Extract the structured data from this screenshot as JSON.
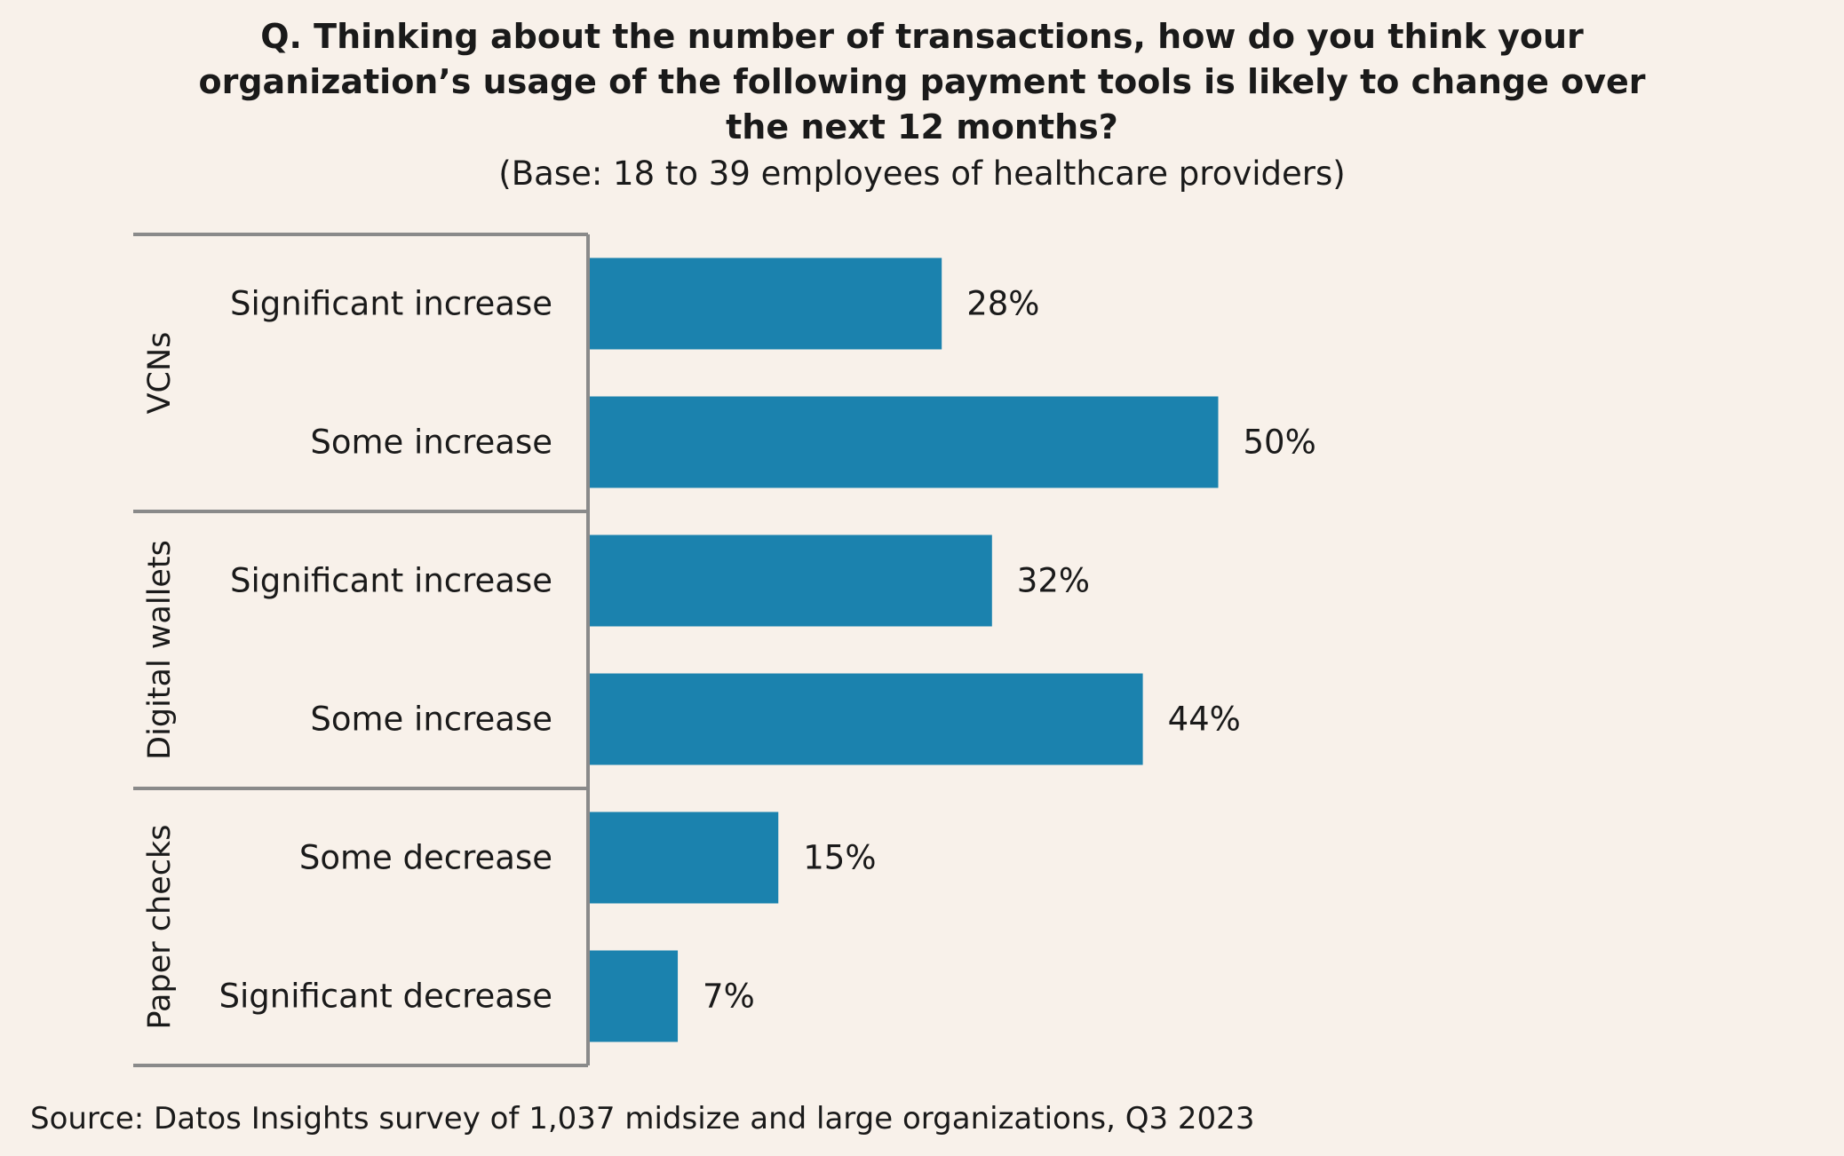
{
  "chart_data": {
    "type": "bar",
    "orientation": "horizontal",
    "title": "Q. Thinking about the number of transactions, how do you think your organization’s usage of the following payment tools is likely to change over the next 12 months?",
    "subtitle": "(Base: 18 to 39 employees of healthcare providers)",
    "groups": [
      {
        "name": "VCNs",
        "categories": [
          "Significant increase",
          "Some increase"
        ],
        "values": [
          28,
          50
        ]
      },
      {
        "name": "Digital wallets",
        "categories": [
          "Significant increase",
          "Some increase"
        ],
        "values": [
          32,
          44
        ]
      },
      {
        "name": "Paper checks",
        "categories": [
          "Some decrease",
          "Significant decrease"
        ],
        "values": [
          15,
          7
        ]
      }
    ],
    "value_labels": [
      "28%",
      "50%",
      "32%",
      "44%",
      "15%",
      "7%"
    ],
    "unit": "%",
    "bar_color": "#1b82ae",
    "grid": false,
    "legend": "none"
  },
  "source": "Source: Datos Insights survey of 1,037 midsize and large organizations, Q3 2023"
}
